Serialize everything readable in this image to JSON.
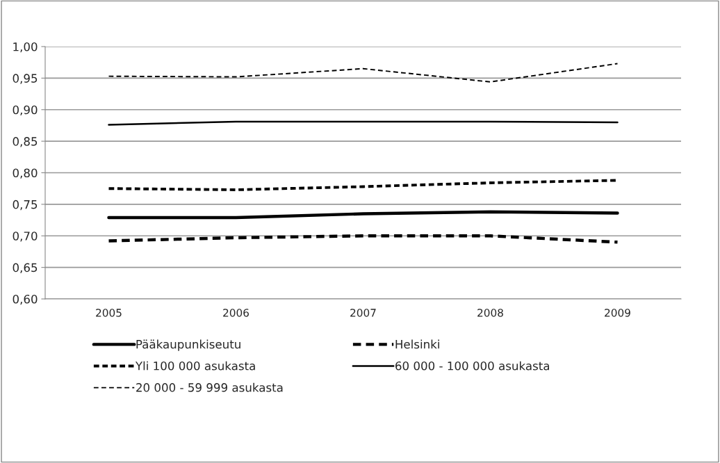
{
  "chart_data": {
    "type": "line",
    "categories": [
      "2005",
      "2006",
      "2007",
      "2008",
      "2009"
    ],
    "series": [
      {
        "name": "Pääkaupunkiseutu",
        "color": "#000000",
        "line_style": "solid",
        "values": [
          0.729,
          0.729,
          0.735,
          0.738,
          0.736
        ]
      },
      {
        "name": "Helsinki",
        "color": "#000000",
        "line_style": "dashed",
        "values": [
          0.692,
          0.697,
          0.7,
          0.7,
          0.69
        ]
      },
      {
        "name": "Yli 100 000 asukasta",
        "color": "#000000",
        "line_style": "dashed",
        "values": [
          0.775,
          0.773,
          0.778,
          0.784,
          0.788
        ]
      },
      {
        "name": "60 000 - 100 000 asukasta",
        "color": "#000000",
        "line_style": "solid",
        "values": [
          0.876,
          0.881,
          0.881,
          0.881,
          0.88
        ]
      },
      {
        "name": "20 000 - 59 999 asukasta",
        "color": "#000000",
        "line_style": "dashed",
        "values": [
          0.953,
          0.952,
          0.965,
          0.944,
          0.973
        ]
      }
    ],
    "ylim": [
      0.6,
      1.0
    ],
    "yticks": [
      {
        "value": 0.6,
        "label": "0,60"
      },
      {
        "value": 0.65,
        "label": "0,65"
      },
      {
        "value": 0.7,
        "label": "0,70"
      },
      {
        "value": 0.75,
        "label": "0,75"
      },
      {
        "value": 0.8,
        "label": "0,80"
      },
      {
        "value": 0.85,
        "label": "0,85"
      },
      {
        "value": 0.9,
        "label": "0,90"
      },
      {
        "value": 0.95,
        "label": "0,95"
      },
      {
        "value": 1.0,
        "label": "1,00"
      }
    ],
    "grid": "y",
    "legend": "bottom",
    "marker": "none"
  }
}
